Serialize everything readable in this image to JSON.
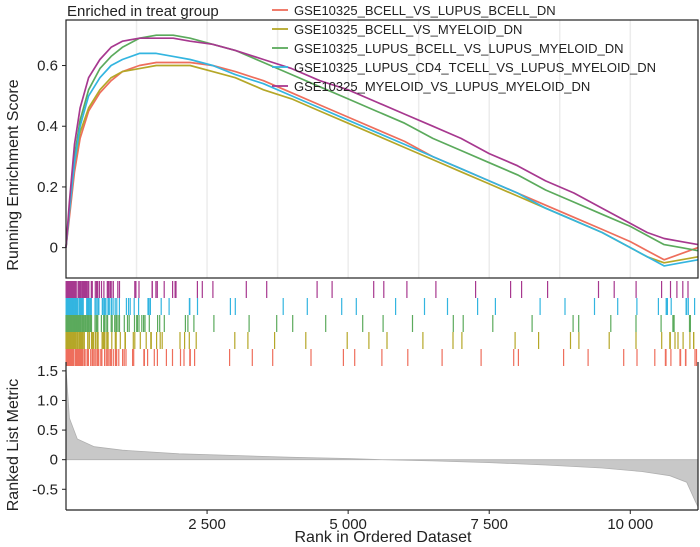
{
  "chart_data": {
    "type": "line",
    "title": "Enriched in treat group",
    "xlabel": "Rank in Ordered Dataset",
    "ylabel_top": "Running Enrichment Score",
    "ylabel_bottom": "Ranked List Metric",
    "x_range": [
      0,
      11200
    ],
    "x_ticks": [
      2500,
      5000,
      7500,
      10000
    ],
    "x_tick_labels": [
      "2 500",
      "5 000",
      "7 500",
      "10 000"
    ],
    "es_ylim": [
      -0.1,
      0.75
    ],
    "es_ticks": [
      0,
      0.2,
      0.4,
      0.6
    ],
    "es_tick_labels": [
      "0",
      "0.2",
      "0.4",
      "0.6"
    ],
    "metric_ylim": [
      -0.85,
      1.65
    ],
    "metric_ticks": [
      -0.5,
      0,
      0.5,
      1.0,
      1.5
    ],
    "metric_tick_labels": [
      "-0.5",
      "0",
      "0.5",
      "1.0",
      "1.5"
    ],
    "metric_curve": [
      [
        0,
        1.55
      ],
      [
        60,
        0.7
      ],
      [
        200,
        0.35
      ],
      [
        500,
        0.22
      ],
      [
        1000,
        0.16
      ],
      [
        2000,
        0.1
      ],
      [
        3000,
        0.07
      ],
      [
        4000,
        0.04
      ],
      [
        5000,
        0.02
      ],
      [
        5600,
        0.0
      ],
      [
        6500,
        -0.02
      ],
      [
        7500,
        -0.05
      ],
      [
        8500,
        -0.09
      ],
      [
        9500,
        -0.14
      ],
      [
        10200,
        -0.2
      ],
      [
        10700,
        -0.27
      ],
      [
        11000,
        -0.38
      ],
      [
        11150,
        -0.7
      ],
      [
        11200,
        -0.8
      ]
    ],
    "legend_position": "top-right",
    "grid": true,
    "series": [
      {
        "name": "GSE10325_BCELL_VS_LUPUS_BCELL_DN",
        "color": "#EE6E5C",
        "values": [
          [
            0,
            0
          ],
          [
            60,
            0.1
          ],
          [
            150,
            0.25
          ],
          [
            250,
            0.36
          ],
          [
            400,
            0.45
          ],
          [
            600,
            0.51
          ],
          [
            800,
            0.55
          ],
          [
            1000,
            0.58
          ],
          [
            1300,
            0.6
          ],
          [
            1600,
            0.61
          ],
          [
            1900,
            0.61
          ],
          [
            2200,
            0.61
          ],
          [
            2600,
            0.6
          ],
          [
            3000,
            0.58
          ],
          [
            3500,
            0.55
          ],
          [
            4000,
            0.51
          ],
          [
            4500,
            0.47
          ],
          [
            5000,
            0.43
          ],
          [
            5500,
            0.39
          ],
          [
            6000,
            0.35
          ],
          [
            6500,
            0.3
          ],
          [
            7000,
            0.26
          ],
          [
            7500,
            0.22
          ],
          [
            8000,
            0.18
          ],
          [
            8500,
            0.14
          ],
          [
            9000,
            0.1
          ],
          [
            9500,
            0.06
          ],
          [
            10000,
            0.02
          ],
          [
            10300,
            -0.01
          ],
          [
            10600,
            -0.04
          ],
          [
            10900,
            -0.02
          ],
          [
            11200,
            0
          ]
        ]
      },
      {
        "name": "GSE10325_BCELL_VS_MYELOID_DN",
        "color": "#B5A728",
        "values": [
          [
            0,
            0
          ],
          [
            60,
            0.12
          ],
          [
            150,
            0.28
          ],
          [
            250,
            0.38
          ],
          [
            400,
            0.46
          ],
          [
            600,
            0.52
          ],
          [
            800,
            0.56
          ],
          [
            1000,
            0.58
          ],
          [
            1300,
            0.59
          ],
          [
            1600,
            0.6
          ],
          [
            1900,
            0.6
          ],
          [
            2200,
            0.6
          ],
          [
            2600,
            0.58
          ],
          [
            3000,
            0.56
          ],
          [
            3500,
            0.52
          ],
          [
            4000,
            0.49
          ],
          [
            4500,
            0.45
          ],
          [
            5000,
            0.41
          ],
          [
            5500,
            0.37
          ],
          [
            6000,
            0.33
          ],
          [
            6500,
            0.29
          ],
          [
            7000,
            0.25
          ],
          [
            7500,
            0.21
          ],
          [
            8000,
            0.17
          ],
          [
            8500,
            0.13
          ],
          [
            9000,
            0.09
          ],
          [
            9500,
            0.05
          ],
          [
            10000,
            0.0
          ],
          [
            10300,
            -0.03
          ],
          [
            10600,
            -0.05
          ],
          [
            10900,
            -0.04
          ],
          [
            11200,
            -0.03
          ]
        ]
      },
      {
        "name": "GSE10325_LUPUS_BCELL_VS_LUPUS_MYELOID_DN",
        "color": "#5BAA5C",
        "values": [
          [
            0,
            0
          ],
          [
            60,
            0.13
          ],
          [
            150,
            0.3
          ],
          [
            250,
            0.42
          ],
          [
            400,
            0.52
          ],
          [
            600,
            0.59
          ],
          [
            800,
            0.63
          ],
          [
            1000,
            0.66
          ],
          [
            1300,
            0.69
          ],
          [
            1600,
            0.7
          ],
          [
            1900,
            0.7
          ],
          [
            2200,
            0.69
          ],
          [
            2600,
            0.67
          ],
          [
            3000,
            0.65
          ],
          [
            3500,
            0.61
          ],
          [
            4000,
            0.57
          ],
          [
            4500,
            0.53
          ],
          [
            5000,
            0.49
          ],
          [
            5500,
            0.45
          ],
          [
            6000,
            0.41
          ],
          [
            6500,
            0.36
          ],
          [
            7000,
            0.32
          ],
          [
            7500,
            0.28
          ],
          [
            8000,
            0.24
          ],
          [
            8500,
            0.19
          ],
          [
            9000,
            0.15
          ],
          [
            9500,
            0.11
          ],
          [
            10000,
            0.07
          ],
          [
            10300,
            0.04
          ],
          [
            10600,
            0.01
          ],
          [
            10900,
            0.0
          ],
          [
            11200,
            -0.01
          ]
        ]
      },
      {
        "name": "GSE10325_LUPUS_CD4_TCELL_VS_LUPUS_MYELOID_DN",
        "color": "#33B5E0",
        "values": [
          [
            0,
            0
          ],
          [
            60,
            0.12
          ],
          [
            150,
            0.28
          ],
          [
            250,
            0.4
          ],
          [
            400,
            0.5
          ],
          [
            600,
            0.56
          ],
          [
            800,
            0.6
          ],
          [
            1000,
            0.62
          ],
          [
            1300,
            0.64
          ],
          [
            1600,
            0.64
          ],
          [
            1900,
            0.63
          ],
          [
            2200,
            0.62
          ],
          [
            2600,
            0.6
          ],
          [
            3000,
            0.57
          ],
          [
            3500,
            0.54
          ],
          [
            4000,
            0.5
          ],
          [
            4500,
            0.46
          ],
          [
            5000,
            0.42
          ],
          [
            5500,
            0.38
          ],
          [
            6000,
            0.34
          ],
          [
            6500,
            0.3
          ],
          [
            7000,
            0.26
          ],
          [
            7500,
            0.22
          ],
          [
            8000,
            0.18
          ],
          [
            8500,
            0.13
          ],
          [
            9000,
            0.09
          ],
          [
            9500,
            0.05
          ],
          [
            10000,
            0.0
          ],
          [
            10300,
            -0.03
          ],
          [
            10600,
            -0.06
          ],
          [
            10900,
            -0.05
          ],
          [
            11200,
            -0.04
          ]
        ]
      },
      {
        "name": "GSE10325_MYELOID_VS_LUPUS_MYELOID_DN",
        "color": "#A7388F",
        "values": [
          [
            0,
            0
          ],
          [
            60,
            0.15
          ],
          [
            150,
            0.34
          ],
          [
            250,
            0.46
          ],
          [
            400,
            0.56
          ],
          [
            600,
            0.62
          ],
          [
            800,
            0.66
          ],
          [
            1000,
            0.68
          ],
          [
            1300,
            0.69
          ],
          [
            1600,
            0.69
          ],
          [
            1900,
            0.69
          ],
          [
            2200,
            0.68
          ],
          [
            2600,
            0.67
          ],
          [
            3000,
            0.65
          ],
          [
            3500,
            0.62
          ],
          [
            4000,
            0.59
          ],
          [
            4500,
            0.55
          ],
          [
            5000,
            0.52
          ],
          [
            5500,
            0.48
          ],
          [
            6000,
            0.44
          ],
          [
            6500,
            0.4
          ],
          [
            7000,
            0.36
          ],
          [
            7500,
            0.31
          ],
          [
            8000,
            0.27
          ],
          [
            8500,
            0.22
          ],
          [
            9000,
            0.18
          ],
          [
            9500,
            0.13
          ],
          [
            10000,
            0.08
          ],
          [
            10300,
            0.05
          ],
          [
            10600,
            0.03
          ],
          [
            10900,
            0.02
          ],
          [
            11200,
            0.01
          ]
        ]
      }
    ]
  }
}
